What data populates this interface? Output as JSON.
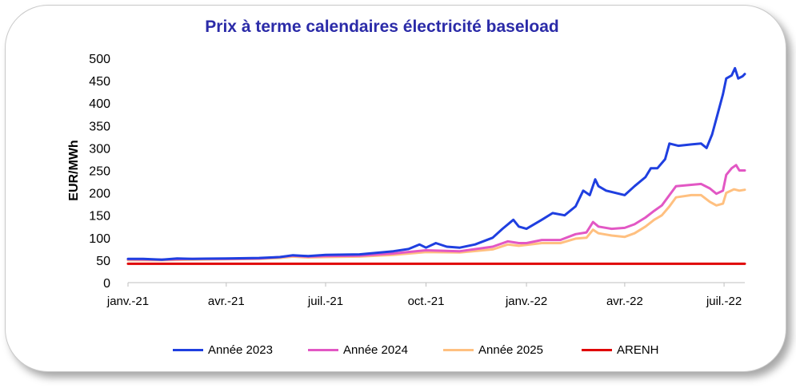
{
  "chart_data": {
    "type": "line",
    "title": "Prix à terme calendaires électricité baseload",
    "ylabel": "EUR/MWh",
    "xlabel": "",
    "ylim": [
      0,
      500
    ],
    "yticks": [
      0,
      50,
      100,
      150,
      200,
      250,
      300,
      350,
      400,
      450,
      500
    ],
    "xlim": [
      "2021-01-01",
      "2022-07-20"
    ],
    "xticks": [
      {
        "date": "2021-01-01",
        "label": "janv.-21"
      },
      {
        "date": "2021-04-01",
        "label": "avr.-21"
      },
      {
        "date": "2021-07-01",
        "label": "juil.-21"
      },
      {
        "date": "2021-10-01",
        "label": "oct.-21"
      },
      {
        "date": "2022-01-01",
        "label": "janv.-22"
      },
      {
        "date": "2022-04-01",
        "label": "avr.-22"
      },
      {
        "date": "2022-07-01",
        "label": "juil.-22"
      }
    ],
    "grid": false,
    "legend_position": "bottom",
    "series": [
      {
        "name": "Année 2023",
        "color": "#1f3fe0",
        "points": [
          [
            "2021-01-01",
            53
          ],
          [
            "2021-01-15",
            53
          ],
          [
            "2021-02-01",
            51
          ],
          [
            "2021-02-15",
            54
          ],
          [
            "2021-03-01",
            53
          ],
          [
            "2021-04-01",
            54
          ],
          [
            "2021-05-01",
            55
          ],
          [
            "2021-05-20",
            57
          ],
          [
            "2021-06-01",
            61
          ],
          [
            "2021-06-15",
            59
          ],
          [
            "2021-07-01",
            62
          ],
          [
            "2021-08-01",
            63
          ],
          [
            "2021-09-01",
            70
          ],
          [
            "2021-09-15",
            75
          ],
          [
            "2021-09-25",
            85
          ],
          [
            "2021-10-01",
            78
          ],
          [
            "2021-10-10",
            88
          ],
          [
            "2021-10-20",
            80
          ],
          [
            "2021-11-01",
            78
          ],
          [
            "2021-11-15",
            85
          ],
          [
            "2021-12-01",
            100
          ],
          [
            "2021-12-10",
            120
          ],
          [
            "2021-12-20",
            140
          ],
          [
            "2021-12-25",
            125
          ],
          [
            "2022-01-01",
            120
          ],
          [
            "2022-01-15",
            140
          ],
          [
            "2022-01-25",
            155
          ],
          [
            "2022-02-05",
            150
          ],
          [
            "2022-02-15",
            170
          ],
          [
            "2022-02-22",
            205
          ],
          [
            "2022-02-28",
            195
          ],
          [
            "2022-03-05",
            230
          ],
          [
            "2022-03-08",
            215
          ],
          [
            "2022-03-15",
            205
          ],
          [
            "2022-04-01",
            195
          ],
          [
            "2022-04-10",
            215
          ],
          [
            "2022-04-20",
            235
          ],
          [
            "2022-04-25",
            255
          ],
          [
            "2022-05-01",
            255
          ],
          [
            "2022-05-08",
            275
          ],
          [
            "2022-05-12",
            310
          ],
          [
            "2022-05-20",
            305
          ],
          [
            "2022-06-01",
            308
          ],
          [
            "2022-06-10",
            310
          ],
          [
            "2022-06-15",
            300
          ],
          [
            "2022-06-20",
            330
          ],
          [
            "2022-06-25",
            375
          ],
          [
            "2022-06-30",
            420
          ],
          [
            "2022-07-03",
            455
          ],
          [
            "2022-07-08",
            462
          ],
          [
            "2022-07-11",
            478
          ],
          [
            "2022-07-14",
            455
          ],
          [
            "2022-07-18",
            460
          ],
          [
            "2022-07-20",
            465
          ]
        ]
      },
      {
        "name": "Année 2024",
        "color": "#e257c4",
        "points": [
          [
            "2021-01-01",
            52
          ],
          [
            "2021-02-01",
            51
          ],
          [
            "2021-03-01",
            53
          ],
          [
            "2021-04-01",
            53
          ],
          [
            "2021-05-01",
            54
          ],
          [
            "2021-05-20",
            57
          ],
          [
            "2021-06-01",
            60
          ],
          [
            "2021-06-15",
            58
          ],
          [
            "2021-07-01",
            59
          ],
          [
            "2021-08-01",
            60
          ],
          [
            "2021-09-01",
            65
          ],
          [
            "2021-10-01",
            72
          ],
          [
            "2021-11-01",
            70
          ],
          [
            "2021-12-01",
            80
          ],
          [
            "2021-12-15",
            92
          ],
          [
            "2021-12-25",
            88
          ],
          [
            "2022-01-01",
            88
          ],
          [
            "2022-01-15",
            95
          ],
          [
            "2022-02-01",
            95
          ],
          [
            "2022-02-15",
            108
          ],
          [
            "2022-02-25",
            112
          ],
          [
            "2022-03-03",
            135
          ],
          [
            "2022-03-08",
            125
          ],
          [
            "2022-03-20",
            120
          ],
          [
            "2022-04-01",
            122
          ],
          [
            "2022-04-10",
            130
          ],
          [
            "2022-04-20",
            145
          ],
          [
            "2022-04-28",
            160
          ],
          [
            "2022-05-05",
            172
          ],
          [
            "2022-05-12",
            195
          ],
          [
            "2022-05-18",
            215
          ],
          [
            "2022-06-01",
            218
          ],
          [
            "2022-06-10",
            220
          ],
          [
            "2022-06-18",
            210
          ],
          [
            "2022-06-24",
            198
          ],
          [
            "2022-06-30",
            205
          ],
          [
            "2022-07-03",
            240
          ],
          [
            "2022-07-08",
            255
          ],
          [
            "2022-07-12",
            262
          ],
          [
            "2022-07-15",
            250
          ],
          [
            "2022-07-20",
            250
          ]
        ]
      },
      {
        "name": "Année 2025",
        "color": "#ffc080",
        "points": [
          [
            "2021-01-01",
            50
          ],
          [
            "2021-02-01",
            50
          ],
          [
            "2021-03-01",
            51
          ],
          [
            "2021-04-01",
            52
          ],
          [
            "2021-05-01",
            53
          ],
          [
            "2021-05-20",
            55
          ],
          [
            "2021-06-01",
            58
          ],
          [
            "2021-06-15",
            56
          ],
          [
            "2021-07-01",
            57
          ],
          [
            "2021-08-01",
            58
          ],
          [
            "2021-09-01",
            62
          ],
          [
            "2021-10-01",
            68
          ],
          [
            "2021-11-01",
            67
          ],
          [
            "2021-12-01",
            74
          ],
          [
            "2021-12-15",
            85
          ],
          [
            "2021-12-25",
            82
          ],
          [
            "2022-01-01",
            84
          ],
          [
            "2022-01-15",
            88
          ],
          [
            "2022-02-01",
            88
          ],
          [
            "2022-02-15",
            98
          ],
          [
            "2022-02-25",
            100
          ],
          [
            "2022-03-03",
            118
          ],
          [
            "2022-03-08",
            110
          ],
          [
            "2022-03-20",
            105
          ],
          [
            "2022-04-01",
            102
          ],
          [
            "2022-04-10",
            110
          ],
          [
            "2022-04-20",
            125
          ],
          [
            "2022-04-28",
            140
          ],
          [
            "2022-05-05",
            150
          ],
          [
            "2022-05-12",
            170
          ],
          [
            "2022-05-18",
            190
          ],
          [
            "2022-06-01",
            195
          ],
          [
            "2022-06-10",
            195
          ],
          [
            "2022-06-18",
            180
          ],
          [
            "2022-06-24",
            172
          ],
          [
            "2022-06-30",
            176
          ],
          [
            "2022-07-03",
            200
          ],
          [
            "2022-07-10",
            208
          ],
          [
            "2022-07-15",
            205
          ],
          [
            "2022-07-20",
            207
          ]
        ]
      },
      {
        "name": "ARENH",
        "color": "#e00000",
        "points": [
          [
            "2021-01-01",
            42
          ],
          [
            "2022-07-20",
            42
          ]
        ]
      }
    ]
  }
}
